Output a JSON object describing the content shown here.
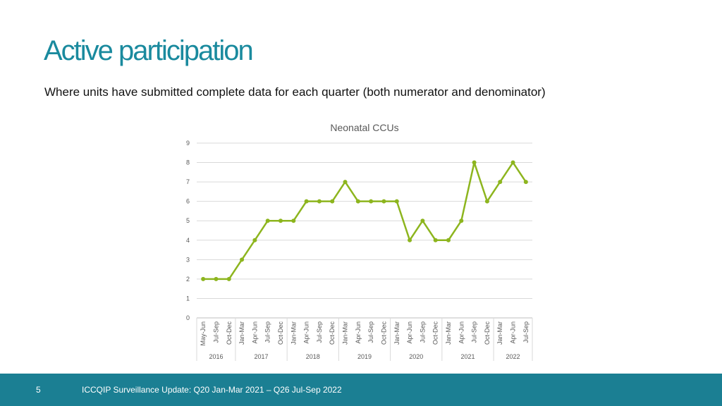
{
  "slide": {
    "title": "Active participation",
    "subtitle": "Where units have submitted complete data for each quarter (both numerator and denominator)",
    "page_number": "5",
    "footer": "ICCQIP Surveillance Update: Q20 Jan-Mar 2021 – Q26 Jul-Sep 2022"
  },
  "colors": {
    "accent": "#1a8a9e",
    "footer_bg": "#1b7f93",
    "series": "#8db51e"
  },
  "chart_data": {
    "type": "line",
    "title": "Neonatal CCUs",
    "xlabel": "",
    "ylabel": "",
    "ylim": [
      0,
      9
    ],
    "yticks": [
      0,
      1,
      2,
      3,
      4,
      5,
      6,
      7,
      8,
      9
    ],
    "grid": true,
    "categories": [
      "May-Jun",
      "Jul-Sep",
      "Oct-Dec",
      "Jan-Mar",
      "Apr-Jun",
      "Jul-Sep",
      "Oct-Dec",
      "Jan-Mar",
      "Apr-Jun",
      "Jul-Sep",
      "Oct-Dec",
      "Jan-Mar",
      "Apr-Jun",
      "Jul-Sep",
      "Oct-Dec",
      "Jan-Mar",
      "Apr-Jun",
      "Jul-Sep",
      "Oct-Dec",
      "Jan-Mar",
      "Apr-Jun",
      "Jul-Sep",
      "Oct-Dec",
      "Jan-Mar",
      "Apr-Jun",
      "Jul-Sep"
    ],
    "year_groups": [
      {
        "label": "2016",
        "count": 3
      },
      {
        "label": "2017",
        "count": 4
      },
      {
        "label": "2018",
        "count": 4
      },
      {
        "label": "2019",
        "count": 4
      },
      {
        "label": "2020",
        "count": 4
      },
      {
        "label": "2021",
        "count": 4
      },
      {
        "label": "2022",
        "count": 3
      }
    ],
    "series": [
      {
        "values": [
          2,
          2,
          2,
          3,
          4,
          5,
          5,
          5,
          6,
          6,
          6,
          7,
          6,
          6,
          6,
          6,
          4,
          5,
          4,
          4,
          5,
          8,
          6,
          7,
          8,
          7
        ]
      }
    ]
  }
}
